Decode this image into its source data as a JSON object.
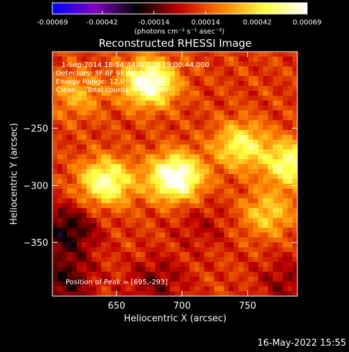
{
  "chart_data": {
    "type": "heatmap",
    "title": "Reconstructed RHESSI Image",
    "colorbar": {
      "ticks": [
        "-0.00069",
        "-0.00042",
        "-0.00014",
        "0.00014",
        "0.00042",
        "0.00069"
      ],
      "min": -0.00069,
      "max": 0.00069,
      "colors": [
        "#0000ff",
        "#8000c0",
        "#000000",
        "#c00000",
        "#ff8000",
        "#ffff40",
        "#ffffff"
      ]
    },
    "colorbar_units": "(photons cm⁻² s⁻¹ asec⁻²)",
    "xlabel": "Heliocentric X (arcsec)",
    "ylabel": "Heliocentric Y (arcsec)",
    "xlim": [
      601,
      788
    ],
    "ylim": [
      -397,
      -183
    ],
    "xticks": [
      650,
      700,
      750
    ],
    "yticks": [
      -250,
      -300,
      -350
    ],
    "annotations": [
      "1-Sep-2014 18:54:44.000 to 19:00:44.000",
      "Detectors: 3F 6F 9F Att 0",
      "Energy Range: 12.0 - 25.0 keV",
      "Clean     Total counts: 3.02E+03"
    ],
    "peak_label": "Position of Peak = [695,-293]",
    "peak": [
      695,
      -293
    ],
    "sources": [
      {
        "x": 695,
        "y": -293,
        "amp": 0.00066
      },
      {
        "x": 675,
        "y": -210,
        "amp": 0.0006
      },
      {
        "x": 745,
        "y": -265,
        "amp": 0.0004
      },
      {
        "x": 642,
        "y": -297,
        "amp": 0.0005
      },
      {
        "x": 783,
        "y": -281,
        "amp": 0.00046
      },
      {
        "x": 765,
        "y": -325,
        "amp": 0.00028
      },
      {
        "x": 620,
        "y": -220,
        "amp": 0.00022
      }
    ],
    "negative_regions": [
      {
        "x": 612,
        "y": -340,
        "amp": -0.0003
      },
      {
        "x": 610,
        "y": -385,
        "amp": -0.00026
      },
      {
        "x": 680,
        "y": -385,
        "amp": -0.00018
      },
      {
        "x": 780,
        "y": -385,
        "amp": -0.00016
      },
      {
        "x": 715,
        "y": -335,
        "amp": -0.0001
      }
    ],
    "background_level": 0.00018,
    "footer": "16-May-2022 15:55"
  }
}
